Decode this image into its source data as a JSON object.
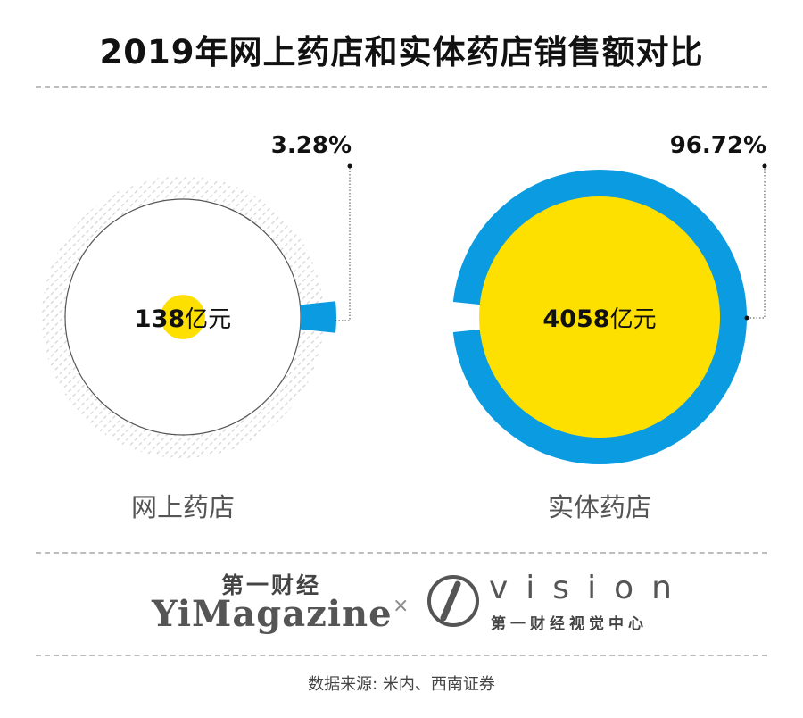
{
  "title": "2019年网上药店和实体药店销售额对比",
  "chart_data": {
    "type": "pie",
    "title": "2019年网上药店和实体药店销售额对比",
    "unit": "亿元",
    "categories": [
      "网上药店",
      "实体药店"
    ],
    "values": [
      138,
      4058
    ],
    "percent_labels": [
      "3.28%",
      "96.72%"
    ],
    "value_labels": [
      "138",
      "4058"
    ]
  },
  "colors": {
    "blue": "#0b9be0",
    "yellow": "#fde000",
    "ring_outline": "#555555",
    "hatch": "#d4d4d4"
  },
  "logos": {
    "yimagazine_cn": "第一财经",
    "yimagazine_en": "YiMagazine",
    "separator": "×",
    "vision_word": "vision",
    "vision_sub": "第一财经视觉中心"
  },
  "source": "数据来源: 米内、西南证券"
}
